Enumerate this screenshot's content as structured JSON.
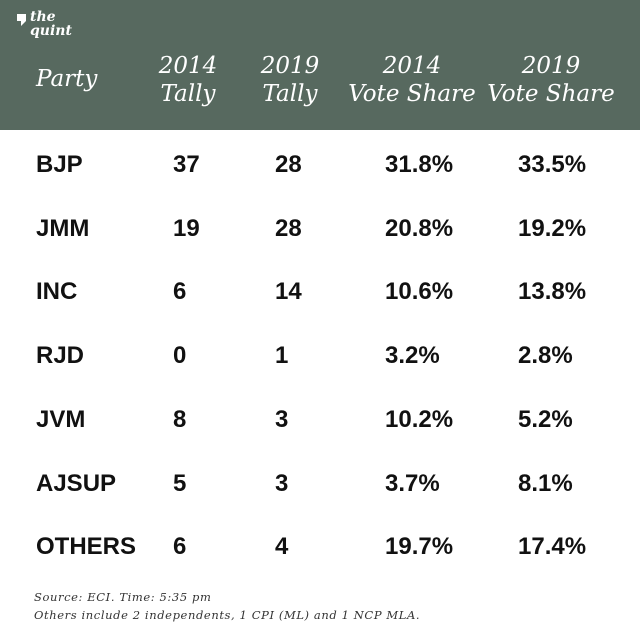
{
  "logo": {
    "line1": "the",
    "line2": "quint"
  },
  "colors": {
    "header_bg": "#57695f",
    "header_text": "#ffffff",
    "body_text": "#111111"
  },
  "chart_data": {
    "type": "table",
    "columns": [
      {
        "top": "Party",
        "bottom": ""
      },
      {
        "top": "2014",
        "bottom": "Tally"
      },
      {
        "top": "2019",
        "bottom": "Tally"
      },
      {
        "top": "2014",
        "bottom": "Vote Share"
      },
      {
        "top": "2019",
        "bottom": "Vote Share"
      }
    ],
    "rows": [
      [
        "BJP",
        "37",
        "28",
        "31.8%",
        "33.5%"
      ],
      [
        "JMM",
        "19",
        "28",
        "20.8%",
        "19.2%"
      ],
      [
        "INC",
        "6",
        "14",
        "10.6%",
        "13.8%"
      ],
      [
        "RJD",
        "0",
        "1",
        "3.2%",
        "2.8%"
      ],
      [
        "JVM",
        "8",
        "3",
        "10.2%",
        "5.2%"
      ],
      [
        "AJSUP",
        "5",
        "3",
        "3.7%",
        "8.1%"
      ],
      [
        "OTHERS",
        "6",
        "4",
        "19.7%",
        "17.4%"
      ]
    ]
  },
  "footnotes": [
    "Source: ECI. Time: 5:35 pm",
    "Others include 2 independents, 1 CPI (ML) and 1 NCP MLA."
  ]
}
